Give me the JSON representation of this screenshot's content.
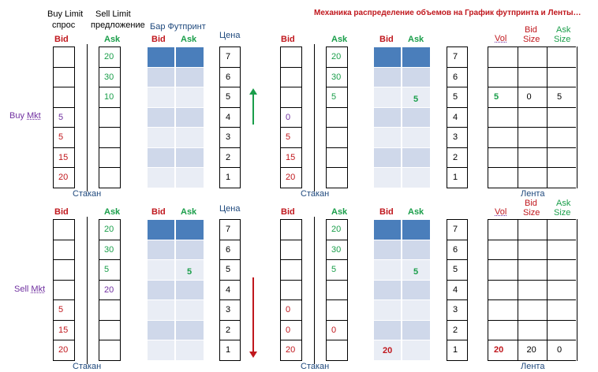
{
  "title": "Механика распределение объемов на График футпринта и Ленты…",
  "headers": {
    "buy_limit": "Buy Limit",
    "demand": "спрос",
    "sell_limit": "Sell Limit",
    "supply": "предложение",
    "footprint_bar": "Бар Футпринт",
    "price": "Цена",
    "bid": "Bid",
    "ask": "Ask",
    "vol": "Vol",
    "bid_size": "Bid Size",
    "ask_size": "Ask Size",
    "bid_word": "Bid",
    "ask_word": "Ask",
    "size_word": "Size",
    "stakan": "Стакан",
    "lenta": "Лента",
    "buy_mkt": "Buy Mkt",
    "sell_mkt": "Sell Mkt"
  },
  "prices": [
    "7",
    "6",
    "5",
    "4",
    "3",
    "2",
    "1"
  ],
  "colors": {
    "red": "#c0171d",
    "green": "#1a9e4a",
    "purple": "#7030a0",
    "fp_dark": "#4a7ebb",
    "fp_a": "#cfd8ea",
    "fp_b": "#e9edf5"
  },
  "panels": [
    {
      "bid": [
        "",
        "",
        "",
        "5",
        "5",
        "15",
        "20"
      ],
      "ask": [
        "20",
        "30",
        "10",
        "",
        "",
        "",
        ""
      ],
      "fp_ask": [
        "",
        "",
        "",
        "",
        "",
        "",
        ""
      ],
      "fp_bid": [
        "",
        "",
        "",
        "",
        "",
        "",
        ""
      ]
    },
    {
      "bid": [
        "",
        "",
        "",
        "0",
        "5",
        "15",
        "20"
      ],
      "ask": [
        "20",
        "30",
        "5",
        "",
        "",
        "",
        ""
      ],
      "fp_bid": [
        "",
        "",
        "",
        "",
        "",
        "",
        ""
      ],
      "fp_ask": [
        "",
        "",
        "5",
        "",
        "",
        "",
        ""
      ],
      "tape": {
        "row": 2,
        "vol": "5",
        "bid_size": "0",
        "ask_size": "5"
      }
    },
    {
      "bid": [
        "",
        "",
        "",
        "",
        "5",
        "15",
        "20"
      ],
      "ask": [
        "20",
        "30",
        "5",
        "20",
        "",
        "",
        ""
      ],
      "fp_bid": [
        "",
        "",
        "",
        "",
        "",
        "",
        ""
      ],
      "fp_ask": [
        "",
        "",
        "5",
        "",
        "",
        "",
        ""
      ]
    },
    {
      "bid": [
        "",
        "",
        "",
        "",
        "0",
        "0",
        "20"
      ],
      "ask": [
        "20",
        "30",
        "5",
        "",
        "",
        "0",
        ""
      ],
      "fp_bid": [
        "",
        "",
        "",
        "",
        "",
        "",
        "20"
      ],
      "fp_ask": [
        "",
        "",
        "5",
        "",
        "",
        "",
        ""
      ],
      "tape": {
        "row": 6,
        "vol": "20",
        "bid_size": "20",
        "ask_size": "0"
      }
    }
  ]
}
